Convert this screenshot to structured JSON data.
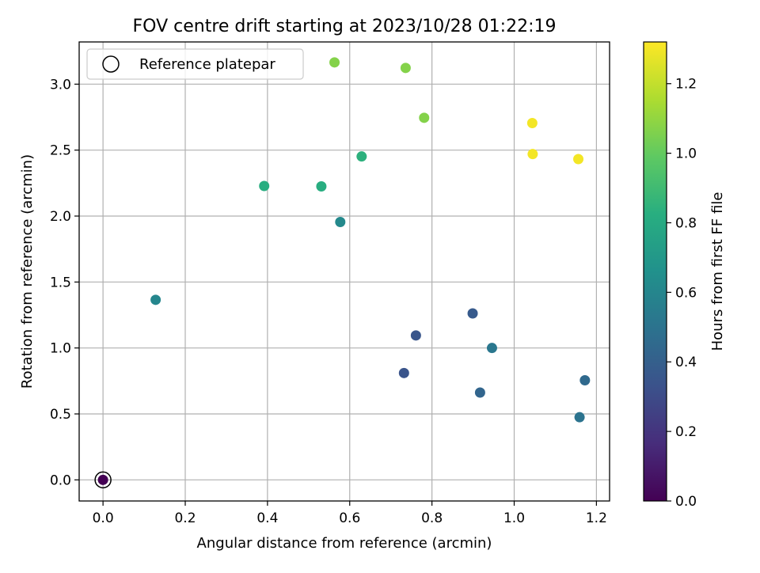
{
  "chart_data": {
    "type": "scatter",
    "title": "FOV centre drift starting at 2023/10/28 01:22:19",
    "xlabel": "Angular distance from reference (arcmin)",
    "ylabel": "Rotation from reference (arcmin)",
    "xlim": [
      -0.058,
      1.232
    ],
    "ylim": [
      -0.16,
      3.32
    ],
    "xticks": [
      0.0,
      0.2,
      0.4,
      0.6,
      0.8,
      1.0,
      1.2
    ],
    "xtick_labels": [
      "0.0",
      "0.2",
      "0.4",
      "0.6",
      "0.8",
      "1.0",
      "1.2"
    ],
    "yticks": [
      0.0,
      0.5,
      1.0,
      1.5,
      2.0,
      2.5,
      3.0
    ],
    "ytick_labels": [
      "0.0",
      "0.5",
      "1.0",
      "1.5",
      "2.0",
      "2.5",
      "3.0"
    ],
    "grid": true,
    "legend": {
      "position": "top-left",
      "entries": [
        "Reference platepar"
      ]
    },
    "colorbar": {
      "label": "Hours from first FF file",
      "range": [
        0.0,
        1.32
      ],
      "colormap": "viridis",
      "ticks": [
        0.0,
        0.2,
        0.4,
        0.6,
        0.8,
        1.0,
        1.2
      ],
      "tick_labels": [
        "0.0",
        "0.2",
        "0.4",
        "0.6",
        "0.8",
        "1.0",
        "1.2"
      ]
    },
    "reference_point": {
      "x": 0.0,
      "y": 0.0
    },
    "points": [
      {
        "x": 0.0,
        "y": 0.0,
        "hours": 0.0
      },
      {
        "x": 0.128,
        "y": 1.365,
        "hours": 0.6
      },
      {
        "x": 0.392,
        "y": 2.228,
        "hours": 0.82
      },
      {
        "x": 0.531,
        "y": 2.225,
        "hours": 0.82
      },
      {
        "x": 0.563,
        "y": 3.165,
        "hours": 1.07
      },
      {
        "x": 0.577,
        "y": 1.955,
        "hours": 0.62
      },
      {
        "x": 0.629,
        "y": 2.452,
        "hours": 0.84
      },
      {
        "x": 0.732,
        "y": 0.81,
        "hours": 0.34
      },
      {
        "x": 0.736,
        "y": 3.123,
        "hours": 1.07
      },
      {
        "x": 0.761,
        "y": 1.095,
        "hours": 0.35
      },
      {
        "x": 0.781,
        "y": 2.745,
        "hours": 1.07
      },
      {
        "x": 0.899,
        "y": 1.262,
        "hours": 0.37
      },
      {
        "x": 0.917,
        "y": 0.662,
        "hours": 0.43
      },
      {
        "x": 0.946,
        "y": 1.0,
        "hours": 0.52
      },
      {
        "x": 1.044,
        "y": 2.705,
        "hours": 1.3
      },
      {
        "x": 1.045,
        "y": 2.47,
        "hours": 1.3
      },
      {
        "x": 1.156,
        "y": 2.432,
        "hours": 1.3
      },
      {
        "x": 1.159,
        "y": 0.475,
        "hours": 0.5
      },
      {
        "x": 1.172,
        "y": 0.755,
        "hours": 0.45
      }
    ]
  }
}
